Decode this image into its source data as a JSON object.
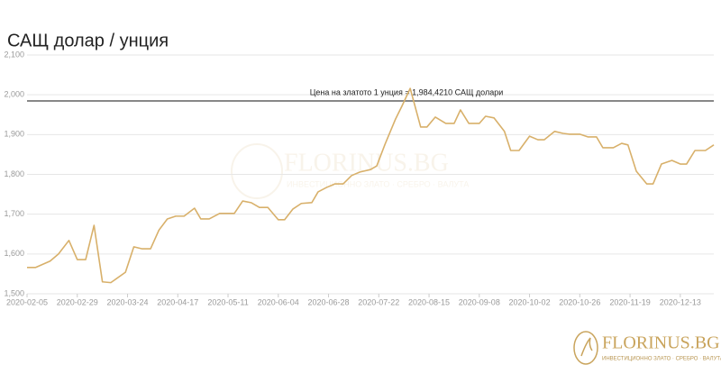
{
  "chart_data": {
    "type": "line",
    "title": "САЩ долар / унция",
    "x": [
      "2020-02-05",
      "2020-02-09",
      "2020-02-16",
      "2020-02-20",
      "2020-02-25",
      "2020-02-29",
      "2020-03-04",
      "2020-03-08",
      "2020-03-12",
      "2020-03-16",
      "2020-03-23",
      "2020-03-27",
      "2020-03-31",
      "2020-04-04",
      "2020-04-08",
      "2020-04-12",
      "2020-04-16",
      "2020-04-20",
      "2020-04-25",
      "2020-04-28",
      "2020-05-02",
      "2020-05-07",
      "2020-05-11",
      "2020-05-14",
      "2020-05-18",
      "2020-05-22",
      "2020-05-26",
      "2020-05-30",
      "2020-06-04",
      "2020-06-07",
      "2020-06-11",
      "2020-06-15",
      "2020-06-20",
      "2020-06-23",
      "2020-06-27",
      "2020-07-01",
      "2020-07-05",
      "2020-07-09",
      "2020-07-13",
      "2020-07-18",
      "2020-07-21",
      "2020-07-25",
      "2020-07-30",
      "2020-08-02",
      "2020-08-06",
      "2020-08-11",
      "2020-08-14",
      "2020-08-18",
      "2020-08-23",
      "2020-08-27",
      "2020-08-30",
      "2020-09-03",
      "2020-09-08",
      "2020-09-11",
      "2020-09-15",
      "2020-09-20",
      "2020-09-23",
      "2020-09-27",
      "2020-10-02",
      "2020-10-06",
      "2020-10-09",
      "2020-10-14",
      "2020-10-18",
      "2020-10-21",
      "2020-10-26",
      "2020-10-30",
      "2020-11-03",
      "2020-11-06",
      "2020-11-11",
      "2020-11-15",
      "2020-11-18",
      "2020-11-22",
      "2020-11-27",
      "2020-11-30",
      "2020-12-04",
      "2020-12-09",
      "2020-12-13",
      "2020-12-16",
      "2020-12-20",
      "2020-12-25",
      "2020-12-29"
    ],
    "series": [
      {
        "color": "#d8b06a",
        "values": [
          1566,
          1566,
          1582,
          1600,
          1634,
          1586,
          1586,
          1672,
          1530,
          1528,
          1554,
          1618,
          1613,
          1613,
          1660,
          1688,
          1695,
          1695,
          1715,
          1688,
          1688,
          1702,
          1702,
          1702,
          1733,
          1729,
          1717,
          1717,
          1686,
          1686,
          1713,
          1727,
          1729,
          1756,
          1767,
          1776,
          1776,
          1797,
          1806,
          1812,
          1821,
          1876,
          1939,
          1971,
          2016,
          1919,
          1919,
          1944,
          1928,
          1928,
          1962,
          1928,
          1928,
          1946,
          1942,
          1908,
          1860,
          1860,
          1896,
          1887,
          1887,
          1908,
          1903,
          1901,
          1901,
          1894,
          1894,
          1867,
          1867,
          1878,
          1874,
          1808,
          1776,
          1776,
          1826,
          1835,
          1826,
          1826,
          1860,
          1860,
          1874
        ]
      }
    ],
    "xlim": [
      "2020-02-05",
      "2020-12-29"
    ],
    "xticks": [
      "2020-02-05",
      "2020-02-29",
      "2020-03-24",
      "2020-04-17",
      "2020-05-11",
      "2020-06-04",
      "2020-06-28",
      "2020-07-22",
      "2020-08-15",
      "2020-09-08",
      "2020-10-02",
      "2020-10-26",
      "2020-11-19",
      "2020-12-13"
    ],
    "ylim": [
      1500,
      2100
    ],
    "yticks": [
      {
        "value": 1500,
        "label": "1,500"
      },
      {
        "value": 1600,
        "label": "1,600"
      },
      {
        "value": 1700,
        "label": "1,700"
      },
      {
        "value": 1800,
        "label": "1,800"
      },
      {
        "value": 1900,
        "label": "1,900"
      },
      {
        "value": 2000,
        "label": "2,000"
      },
      {
        "value": 2100,
        "label": "2,100"
      }
    ],
    "grid": true,
    "reference_line": {
      "value": 1984.421,
      "label": "Цена на златото 1 унция = 1,984,4210 САЩ долари",
      "color": "#888888"
    }
  },
  "logo": {
    "name": "FLORINUS.BG",
    "tagline": "ИНВЕСТИЦИОННО ЗЛАТО · СРЕБРО · ВАЛУТА"
  }
}
